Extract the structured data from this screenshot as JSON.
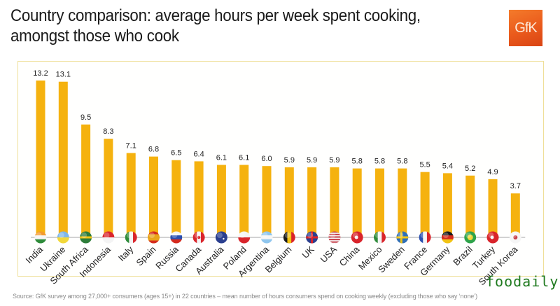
{
  "header": {
    "title_line1": "Country comparison: average hours per week spent cooking,",
    "title_line2": "amongst those who cook",
    "logo_text": "GfK"
  },
  "footer": {
    "source": "Source: GfK survey among 27,000+ consumers (ages 15+) in 22 countries – mean number of hours consumers spend  on cooking weekly (excluding those who say ‘none’)",
    "watermark": "foodaily"
  },
  "colors": {
    "bar": "#F5B20F",
    "frame": "#EFDF98",
    "logo": "#EA5A1C",
    "watermark": "#1F7A1F"
  },
  "chart_data": {
    "type": "bar",
    "title": "Country comparison: average hours per week spent cooking, amongst those who cook",
    "xlabel": "",
    "ylabel": "Hours per week",
    "ylim": [
      0,
      14
    ],
    "grid": false,
    "legend": "none",
    "categories": [
      "India",
      "Ukraine",
      "South Africa",
      "Indonesia",
      "Italy",
      "Spain",
      "Russia",
      "Canada",
      "Australia",
      "Poland",
      "Argentina",
      "Belgium",
      "UK",
      "USA",
      "China",
      "Mexico",
      "Sweden",
      "France",
      "Germany",
      "Brazil",
      "Turkey",
      "South Korea"
    ],
    "values": [
      13.2,
      13.1,
      9.5,
      8.3,
      7.1,
      6.8,
      6.5,
      6.4,
      6.1,
      6.1,
      6.0,
      5.9,
      5.9,
      5.9,
      5.8,
      5.8,
      5.8,
      5.5,
      5.4,
      5.2,
      4.9,
      3.7
    ],
    "labels": [
      "13.2",
      "13.1",
      "9.5",
      "8.3",
      "7.1",
      "6.8",
      "6.5",
      "6.4",
      "6.1",
      "6.1",
      "6.0",
      "5.9",
      "5.9",
      "5.9",
      "5.8",
      "5.8",
      "5.8",
      "5.5",
      "5.4",
      "5.2",
      "4.9",
      "3.7"
    ],
    "flag_icons": [
      "india-flag",
      "ukraine-flag",
      "south-africa-flag",
      "indonesia-flag",
      "italy-flag",
      "spain-flag",
      "russia-flag",
      "canada-flag",
      "australia-flag",
      "poland-flag",
      "argentina-flag",
      "belgium-flag",
      "uk-flag",
      "usa-flag",
      "china-flag",
      "mexico-flag",
      "sweden-flag",
      "france-flag",
      "germany-flag",
      "brazil-flag",
      "turkey-flag",
      "south-korea-flag"
    ]
  }
}
